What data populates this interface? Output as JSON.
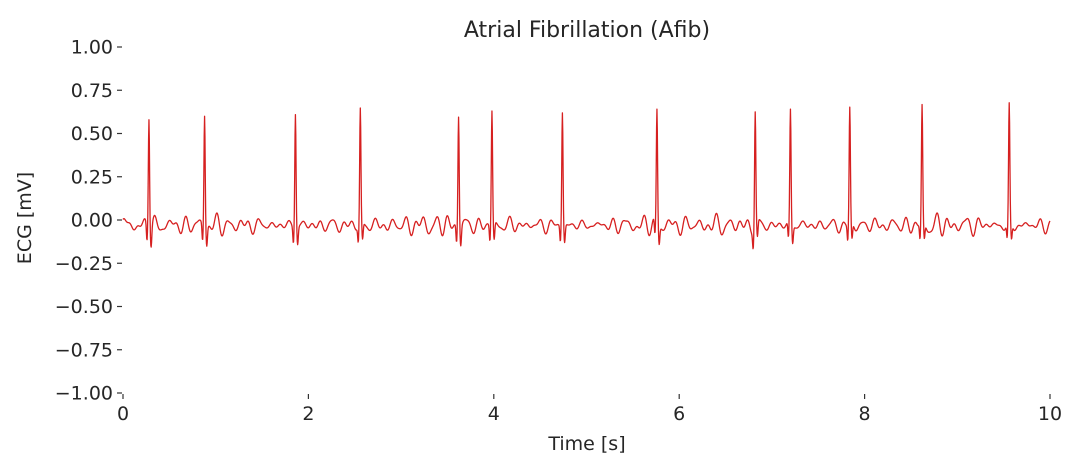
{
  "chart_data": {
    "type": "line",
    "title": "Atrial Fibrillation (Afib)",
    "xlabel": "Time [s]",
    "ylabel": "ECG [mV]",
    "xlim": [
      0,
      10
    ],
    "ylim": [
      -1.0,
      1.0
    ],
    "xticks": [
      0,
      2,
      4,
      6,
      8,
      10
    ],
    "yticks": [
      1.0,
      0.75,
      0.5,
      0.25,
      0.0,
      -0.25,
      -0.5,
      -0.75,
      -1.0
    ],
    "ytick_labels": [
      "1.00",
      "0.75",
      "0.50",
      "0.25",
      "0.00",
      "−0.25",
      "−0.50",
      "−0.75",
      "−1.00"
    ],
    "grid": false,
    "line_color": "#d62020",
    "sampling_rate_hz": 250,
    "r_peaks_s": [
      0.28,
      0.88,
      1.86,
      2.56,
      3.62,
      3.98,
      4.74,
      5.76,
      6.82,
      7.2,
      7.84,
      8.62,
      9.56
    ],
    "r_peak_amplitude_mv": 0.66,
    "baseline_mv": -0.03,
    "fibrillation_amplitude_mv": 0.05
  }
}
